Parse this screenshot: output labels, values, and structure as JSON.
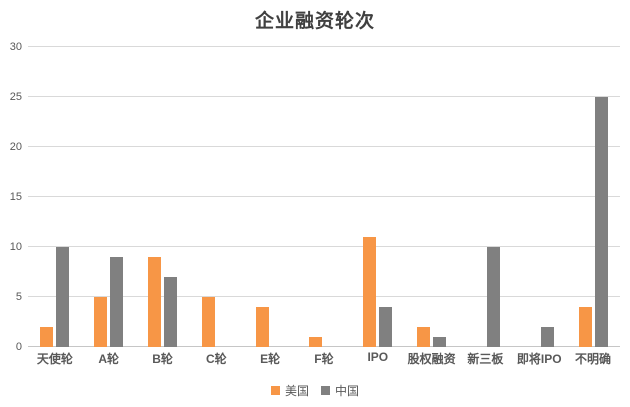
{
  "chart_data": {
    "type": "bar",
    "title": "企业融资轮次",
    "categories": [
      "天使轮",
      "A轮",
      "B轮",
      "C轮",
      "E轮",
      "F轮",
      "IPO",
      "股权融资",
      "新三板",
      "即将IPO",
      "不明确"
    ],
    "series": [
      {
        "name": "美国",
        "color": "#F79646",
        "values": [
          2,
          5,
          9,
          5,
          4,
          1,
          11,
          2,
          0,
          0,
          4
        ]
      },
      {
        "name": "中国",
        "color": "#808080",
        "values": [
          10,
          9,
          7,
          0,
          0,
          0,
          4,
          1,
          10,
          2,
          25
        ]
      }
    ],
    "xlabel": "",
    "ylabel": "",
    "ylim": [
      0,
      30
    ],
    "yticks": [
      0,
      5,
      10,
      15,
      20,
      25,
      30
    ],
    "grid": true,
    "legend_position": "bottom",
    "colors": {
      "title_text": "#404040",
      "axis_text": "#595959",
      "gridline": "#d9d9d9",
      "baseline": "#c6c6c6",
      "background": "#ffffff"
    }
  }
}
